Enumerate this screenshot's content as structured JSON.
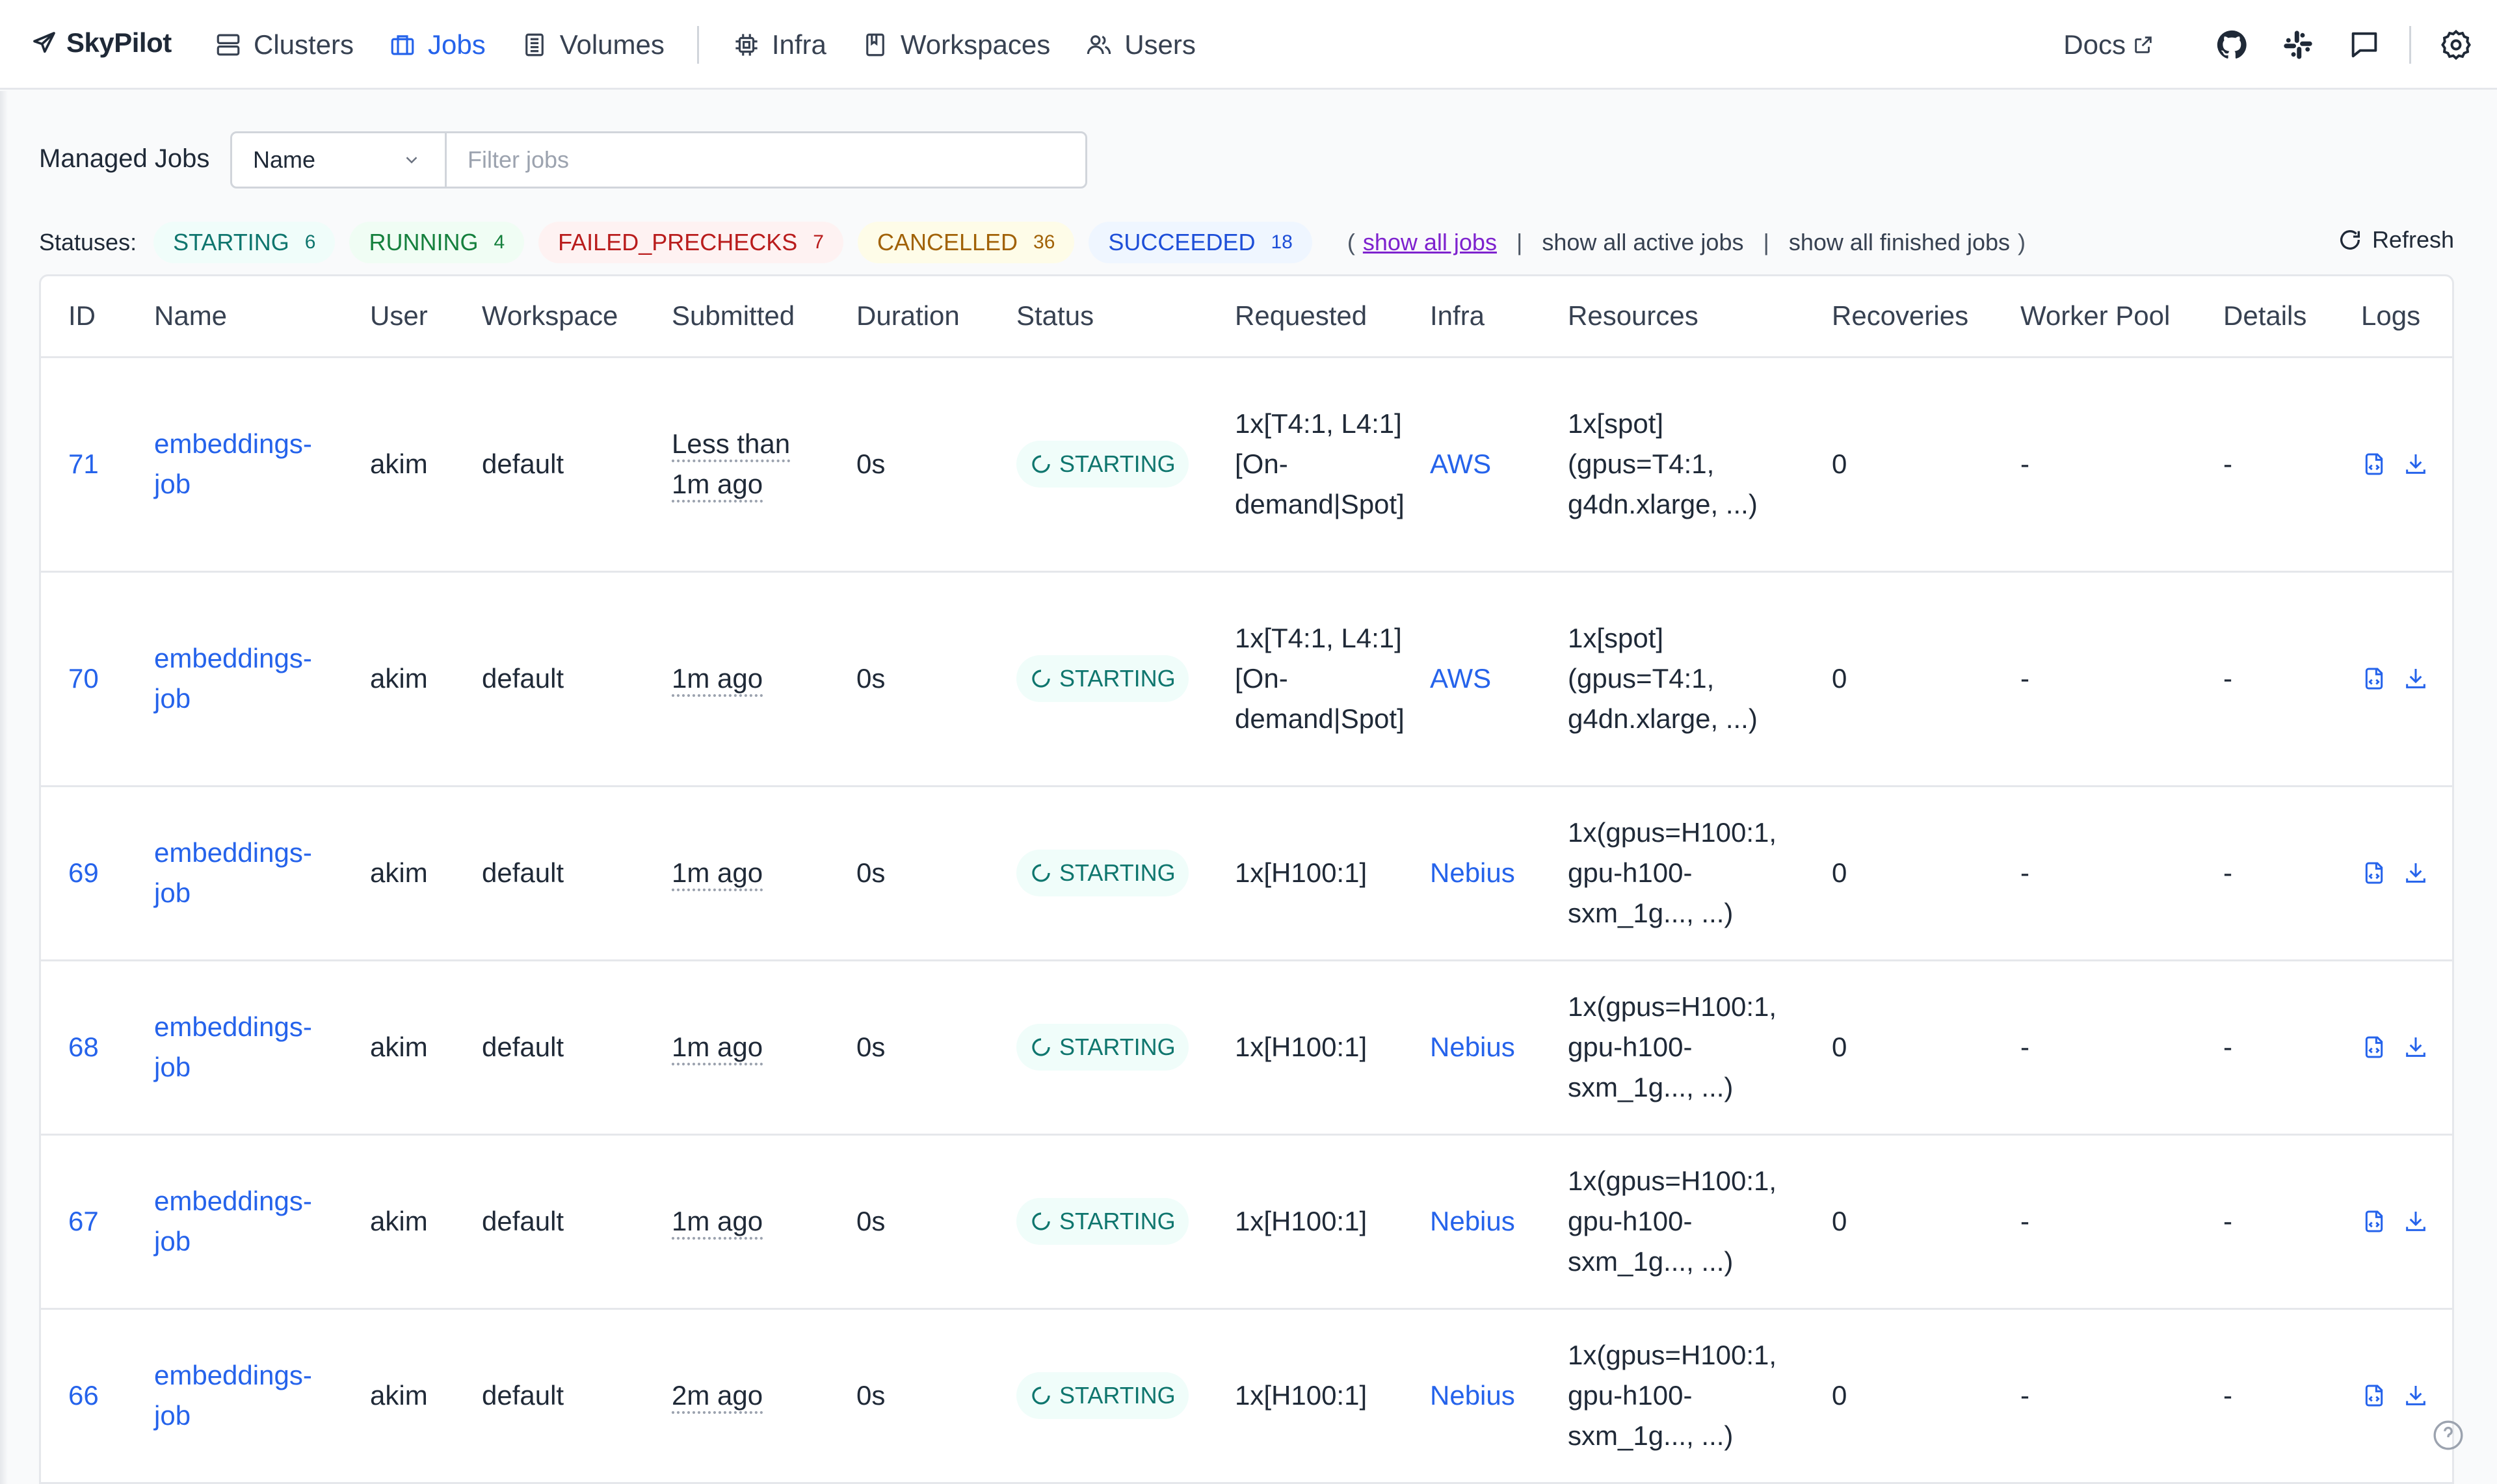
{
  "nav": {
    "brand": "SkyPilot",
    "items": [
      {
        "label": "Clusters",
        "icon": "server-icon"
      },
      {
        "label": "Jobs",
        "icon": "briefcase-icon",
        "active": true
      },
      {
        "label": "Volumes",
        "icon": "drive-icon"
      },
      {
        "label": "Infra",
        "icon": "chip-icon"
      },
      {
        "label": "Workspaces",
        "icon": "book-icon"
      },
      {
        "label": "Users",
        "icon": "users-icon"
      }
    ],
    "docs_label": "Docs",
    "right_icons": [
      "github-icon",
      "slack-icon",
      "message-icon",
      "gear-icon"
    ]
  },
  "filter": {
    "title": "Managed Jobs",
    "select_value": "Name",
    "placeholder": "Filter jobs"
  },
  "statuses": {
    "label": "Statuses:",
    "pills": [
      {
        "name": "STARTING",
        "count": "6"
      },
      {
        "name": "RUNNING",
        "count": "4"
      },
      {
        "name": "FAILED_PRECHECKS",
        "count": "7"
      },
      {
        "name": "CANCELLED",
        "count": "36"
      },
      {
        "name": "SUCCEEDED",
        "count": "18"
      }
    ],
    "show_all": "show all jobs",
    "show_active": "show all active jobs",
    "show_finished": "show all finished jobs",
    "refresh": "Refresh"
  },
  "table": {
    "columns": [
      "ID",
      "Name",
      "User",
      "Workspace",
      "Submitted",
      "Duration",
      "Status",
      "Requested",
      "Infra",
      "Resources",
      "Recoveries",
      "Worker Pool",
      "Details",
      "Logs"
    ],
    "rows": [
      {
        "id": "71",
        "name": "embeddings-job",
        "user": "akim",
        "workspace": "default",
        "submitted": "Less than 1m ago",
        "duration": "0s",
        "status": "STARTING",
        "requested": "1x[T4:1, L4:1][On-demand|Spot]",
        "infra": "AWS",
        "resources": "1x[spot](gpus=T4:1, g4dn.xlarge, ...)",
        "recoveries": "0",
        "worker_pool": "-",
        "details": "-"
      },
      {
        "id": "70",
        "name": "embeddings-job",
        "user": "akim",
        "workspace": "default",
        "submitted": "1m ago",
        "duration": "0s",
        "status": "STARTING",
        "requested": "1x[T4:1, L4:1][On-demand|Spot]",
        "infra": "AWS",
        "resources": "1x[spot](gpus=T4:1, g4dn.xlarge, ...)",
        "recoveries": "0",
        "worker_pool": "-",
        "details": "-"
      },
      {
        "id": "69",
        "name": "embeddings-job",
        "user": "akim",
        "workspace": "default",
        "submitted": "1m ago",
        "duration": "0s",
        "status": "STARTING",
        "requested": "1x[H100:1]",
        "infra": "Nebius",
        "resources": "1x(gpus=H100:1, gpu-h100-sxm_1g..., ...)",
        "recoveries": "0",
        "worker_pool": "-",
        "details": "-"
      },
      {
        "id": "68",
        "name": "embeddings-job",
        "user": "akim",
        "workspace": "default",
        "submitted": "1m ago",
        "duration": "0s",
        "status": "STARTING",
        "requested": "1x[H100:1]",
        "infra": "Nebius",
        "resources": "1x(gpus=H100:1, gpu-h100-sxm_1g..., ...)",
        "recoveries": "0",
        "worker_pool": "-",
        "details": "-"
      },
      {
        "id": "67",
        "name": "embeddings-job",
        "user": "akim",
        "workspace": "default",
        "submitted": "1m ago",
        "duration": "0s",
        "status": "STARTING",
        "requested": "1x[H100:1]",
        "infra": "Nebius",
        "resources": "1x(gpus=H100:1, gpu-h100-sxm_1g..., ...)",
        "recoveries": "0",
        "worker_pool": "-",
        "details": "-"
      },
      {
        "id": "66",
        "name": "embeddings-job",
        "user": "akim",
        "workspace": "default",
        "submitted": "2m ago",
        "duration": "0s",
        "status": "STARTING",
        "requested": "1x[H100:1]",
        "infra": "Nebius",
        "resources": "1x(gpus=H100:1, gpu-h100-sxm_1g..., ...)",
        "recoveries": "0",
        "worker_pool": "-",
        "details": "-"
      }
    ]
  },
  "colors": {
    "accent": "#2563eb",
    "starting": "#0f766e",
    "running": "#15803d",
    "failed": "#b91c1c",
    "cancelled": "#a16207",
    "succeeded": "#1d4ed8"
  }
}
